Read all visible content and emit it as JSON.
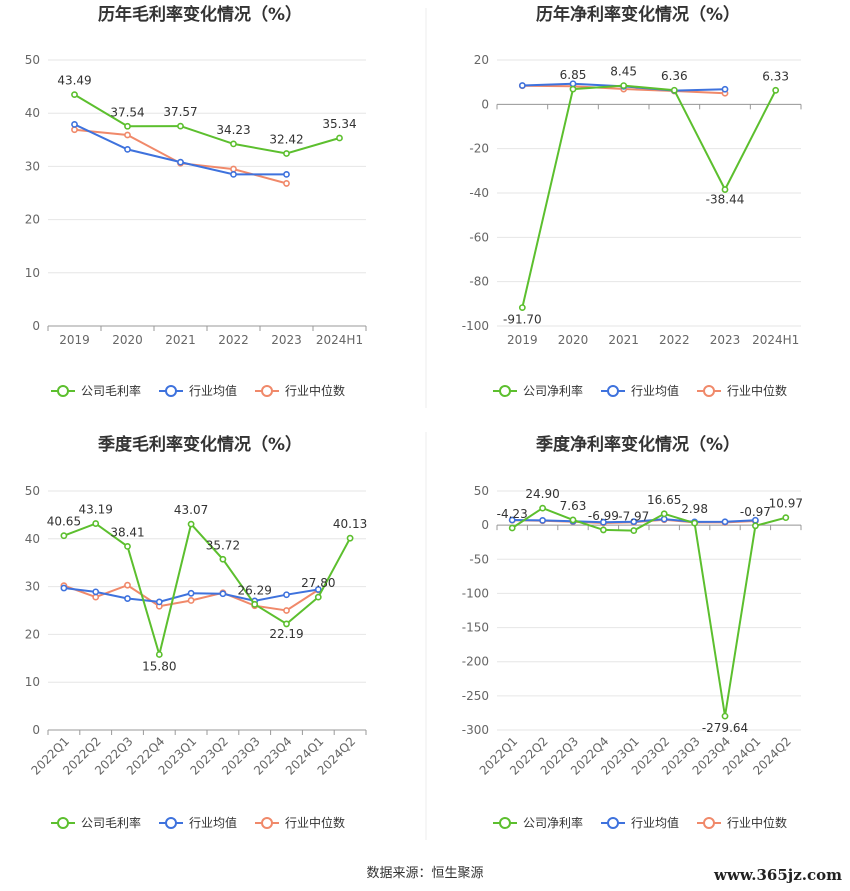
{
  "source_text": "数据来源：恒生聚源",
  "watermark": "www.365jz.com",
  "colors": {
    "company": "#5cbf2e",
    "avg": "#3e72dd",
    "median": "#f0896a",
    "grid": "#e6e6e6",
    "axis": "#999999"
  },
  "chart_data": [
    {
      "type": "line",
      "title": "历年毛利率变化情况（%）",
      "categories": [
        "2019",
        "2020",
        "2021",
        "2022",
        "2023",
        "2024H1"
      ],
      "ylim": [
        0,
        50
      ],
      "yticks": [
        0,
        10,
        20,
        30,
        40,
        50
      ],
      "x_rotated": false,
      "series": [
        {
          "name": "公司毛利率",
          "key": "company",
          "values": [
            43.49,
            37.54,
            37.57,
            34.23,
            32.42,
            35.34
          ],
          "labels": [
            "43.49",
            "37.54",
            "37.57",
            "34.23",
            "32.42",
            "35.34"
          ]
        },
        {
          "name": "行业均值",
          "key": "avg",
          "values": [
            37.9,
            33.2,
            30.8,
            28.5,
            28.5,
            null
          ]
        },
        {
          "name": "行业中位数",
          "key": "median",
          "values": [
            36.9,
            35.9,
            30.6,
            29.5,
            26.8,
            null
          ]
        }
      ],
      "legend_position": "bottom"
    },
    {
      "type": "line",
      "title": "历年净利率变化情况（%）",
      "categories": [
        "2019",
        "2020",
        "2021",
        "2022",
        "2023",
        "2024H1"
      ],
      "ylim": [
        -100,
        20
      ],
      "yticks": [
        -100,
        -80,
        -60,
        -40,
        -20,
        0,
        20
      ],
      "x_rotated": false,
      "series": [
        {
          "name": "公司净利率",
          "key": "company",
          "values": [
            -91.7,
            6.85,
            8.45,
            6.36,
            -38.44,
            6.33
          ],
          "labels": [
            "-91.70",
            "6.85",
            "8.45",
            "6.36",
            "-38.44",
            "6.33"
          ]
        },
        {
          "name": "行业均值",
          "key": "avg",
          "values": [
            8.5,
            9.3,
            8.1,
            6.2,
            6.8,
            null
          ]
        },
        {
          "name": "行业中位数",
          "key": "median",
          "values": [
            8.4,
            8.2,
            6.9,
            6.0,
            5.0,
            null
          ]
        }
      ],
      "legend_position": "bottom"
    },
    {
      "type": "line",
      "title": "季度毛利率变化情况（%）",
      "categories": [
        "2022Q1",
        "2022Q2",
        "2022Q3",
        "2022Q4",
        "2023Q1",
        "2023Q2",
        "2023Q3",
        "2023Q4",
        "2024Q1",
        "2024Q2"
      ],
      "ylim": [
        0,
        50
      ],
      "yticks": [
        0,
        10,
        20,
        30,
        40,
        50
      ],
      "x_rotated": true,
      "series": [
        {
          "name": "公司毛利率",
          "key": "company",
          "values": [
            40.65,
            43.19,
            38.41,
            15.8,
            43.07,
            35.72,
            26.29,
            22.19,
            27.8,
            40.13
          ],
          "labels": [
            "40.65",
            "43.19",
            "38.41",
            "15.80",
            "43.07",
            "35.72",
            "26.29",
            "22.19",
            "27.80",
            "40.13"
          ]
        },
        {
          "name": "行业均值",
          "key": "avg",
          "values": [
            29.7,
            28.9,
            27.5,
            26.8,
            28.6,
            28.5,
            27.0,
            28.3,
            29.4,
            null
          ]
        },
        {
          "name": "行业中位数",
          "key": "median",
          "values": [
            30.2,
            27.8,
            30.3,
            25.9,
            27.1,
            28.7,
            26.0,
            25.0,
            29.3,
            null
          ]
        }
      ],
      "legend_position": "bottom"
    },
    {
      "type": "line",
      "title": "季度净利率变化情况（%）",
      "categories": [
        "2022Q1",
        "2022Q2",
        "2022Q3",
        "2022Q4",
        "2023Q1",
        "2023Q2",
        "2023Q3",
        "2023Q4",
        "2024Q1",
        "2024Q2"
      ],
      "ylim": [
        -300,
        50
      ],
      "yticks": [
        -300,
        -250,
        -200,
        -150,
        -100,
        -50,
        0,
        50
      ],
      "x_rotated": true,
      "series": [
        {
          "name": "公司净利率",
          "key": "company",
          "values": [
            -4.23,
            24.9,
            7.63,
            -6.99,
            -7.97,
            16.65,
            2.98,
            -279.64,
            -0.97,
            10.97
          ],
          "labels": [
            "-4.23",
            "24.90",
            "7.63",
            "-6.99",
            "-7.97",
            "16.65",
            "2.98",
            "-279.64",
            "-0.97",
            "10.97"
          ]
        },
        {
          "name": "行业均值",
          "key": "avg",
          "values": [
            7.5,
            7.0,
            5.6,
            4.3,
            5.1,
            8.9,
            4.8,
            4.9,
            7.2,
            null
          ]
        },
        {
          "name": "行业中位数",
          "key": "median",
          "values": [
            7.2,
            6.4,
            5.0,
            3.1,
            4.3,
            8.0,
            4.0,
            4.0,
            6.0,
            null
          ]
        }
      ],
      "legend_position": "bottom"
    }
  ]
}
